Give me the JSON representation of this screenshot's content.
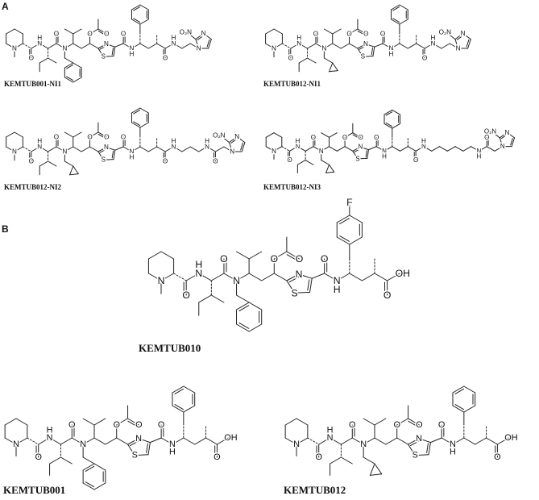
{
  "panels": {
    "a": "A",
    "b": "B"
  },
  "compounds": {
    "kemtub001_ni1": "KEMTUB001-NI1",
    "kemtub012_ni1": "KEMTUB012-NI1",
    "kemtub012_ni2": "KEMTUB012-NI2",
    "kemtub012_ni3": "KEMTUB012-NI3",
    "kemtub010": "KEMTUB010",
    "kemtub001": "KEMTUB001",
    "kemtub012": "KEMTUB012"
  },
  "atoms": {
    "N": "N",
    "H": "H",
    "O": "O",
    "S": "S",
    "OH": "OH",
    "F": "F",
    "NO2": "O₂N"
  }
}
